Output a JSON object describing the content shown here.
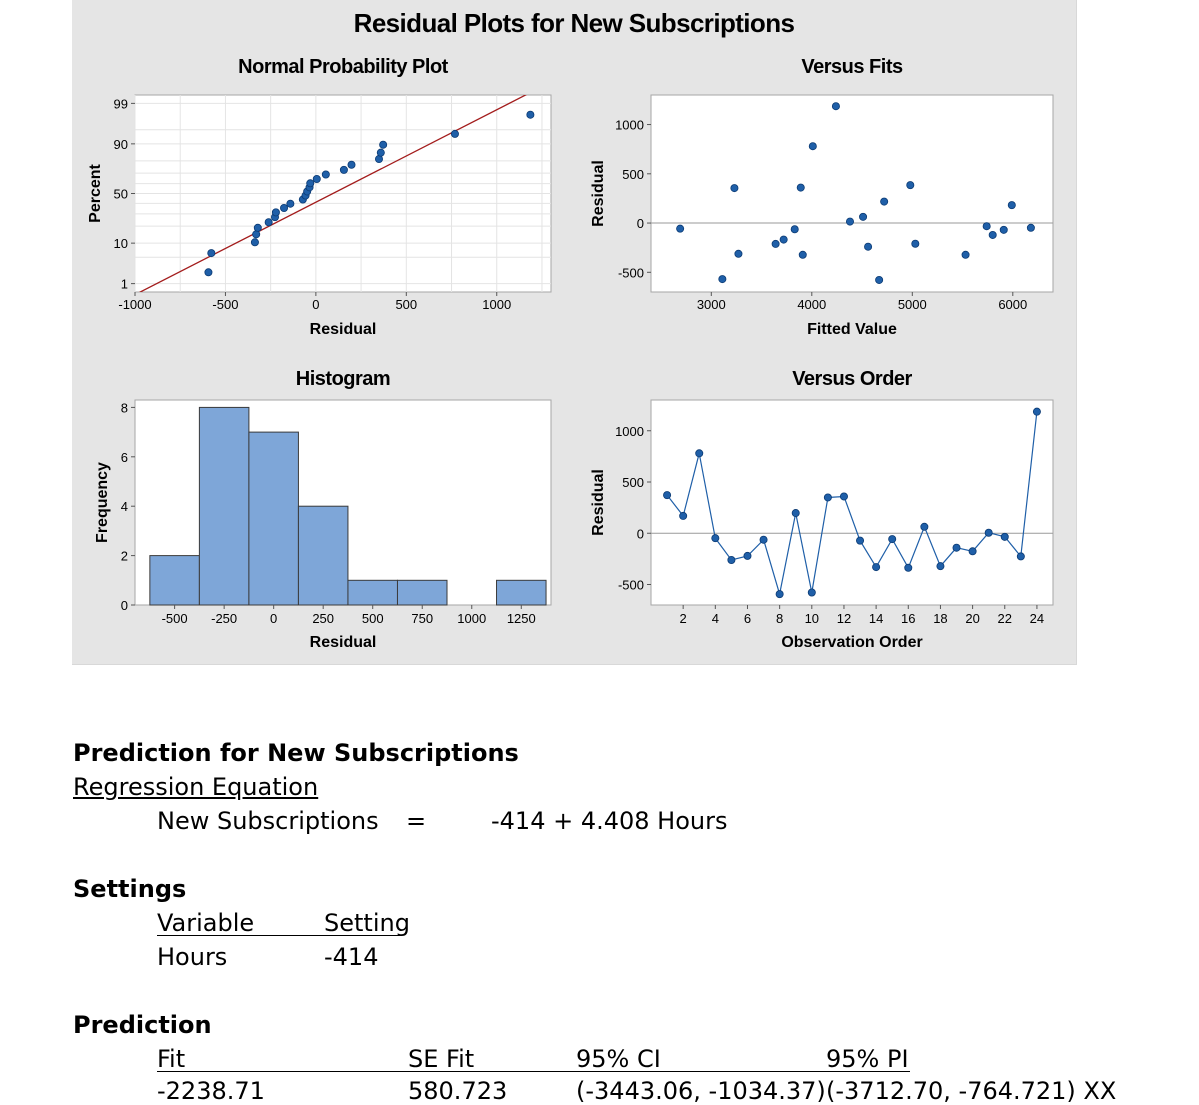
{
  "figure": {
    "main_title": "Residual Plots for New Subscriptions",
    "colors": {
      "panel_bg": "#e5e5e5",
      "plot_bg": "#ffffff",
      "point": "#1f5fa8",
      "bar": "#7ea6d8",
      "fit_line": "#a31c1c",
      "grid": "#e4e4e4"
    }
  },
  "chart_data": [
    {
      "type": "scatter",
      "title": "Normal Probability Plot",
      "xlabel": "Residual",
      "ylabel": "Percent",
      "xlim": [
        -1000,
        1300
      ],
      "xticks": [
        "-1000",
        "-500",
        "0",
        "500",
        "1000"
      ],
      "yticks": [
        "1",
        "10",
        "50",
        "90",
        "99"
      ],
      "y_scale": "normal probability",
      "grid": true,
      "fit_line": {
        "x": [
          -1000,
          1300
        ],
        "y_percent": [
          0.45,
          99.8
        ]
      },
      "points": [
        {
          "x": -594,
          "y": 2.1
        },
        {
          "x": -578,
          "y": 6.2
        },
        {
          "x": -337,
          "y": 10.4
        },
        {
          "x": -330,
          "y": 14.6
        },
        {
          "x": -321,
          "y": 18.8
        },
        {
          "x": -261,
          "y": 22.9
        },
        {
          "x": -226,
          "y": 27.1
        },
        {
          "x": -221,
          "y": 31.3
        },
        {
          "x": -176,
          "y": 35.4
        },
        {
          "x": -141,
          "y": 39.6
        },
        {
          "x": -72,
          "y": 43.8
        },
        {
          "x": -57,
          "y": 47.9
        },
        {
          "x": -48,
          "y": 52.1
        },
        {
          "x": -35,
          "y": 56.3
        },
        {
          "x": -31,
          "y": 60.4
        },
        {
          "x": 5,
          "y": 64.6
        },
        {
          "x": 55,
          "y": 68.8
        },
        {
          "x": 155,
          "y": 72.9
        },
        {
          "x": 197,
          "y": 77.1
        },
        {
          "x": 349,
          "y": 81.3
        },
        {
          "x": 359,
          "y": 85.4
        },
        {
          "x": 372,
          "y": 89.6
        },
        {
          "x": 769,
          "y": 93.8
        },
        {
          "x": 1186,
          "y": 97.9
        }
      ]
    },
    {
      "type": "scatter",
      "title": "Versus Fits",
      "xlabel": "Fitted Value",
      "ylabel": "Residual",
      "xlim": [
        2400,
        6400
      ],
      "ylim": [
        -700,
        1300
      ],
      "xticks": [
        "3000",
        "4000",
        "5000",
        "6000"
      ],
      "yticks": [
        "-500",
        "0",
        "500",
        "1000"
      ],
      "reference_line": 0,
      "points": [
        {
          "x": 2690,
          "y": -57
        },
        {
          "x": 3110,
          "y": -569
        },
        {
          "x": 3230,
          "y": 355
        },
        {
          "x": 3270,
          "y": -312
        },
        {
          "x": 3640,
          "y": -212
        },
        {
          "x": 3720,
          "y": -168
        },
        {
          "x": 3830,
          "y": -63
        },
        {
          "x": 3890,
          "y": 360
        },
        {
          "x": 3910,
          "y": -322
        },
        {
          "x": 4010,
          "y": 780
        },
        {
          "x": 4240,
          "y": 1186
        },
        {
          "x": 4380,
          "y": 15
        },
        {
          "x": 4510,
          "y": 63
        },
        {
          "x": 4560,
          "y": -240
        },
        {
          "x": 4670,
          "y": -578
        },
        {
          "x": 4720,
          "y": 218
        },
        {
          "x": 4980,
          "y": 385
        },
        {
          "x": 5030,
          "y": -210
        },
        {
          "x": 5530,
          "y": -322
        },
        {
          "x": 5740,
          "y": -32
        },
        {
          "x": 5800,
          "y": -121
        },
        {
          "x": 5910,
          "y": -69
        },
        {
          "x": 5990,
          "y": 182
        },
        {
          "x": 6180,
          "y": -48
        }
      ]
    },
    {
      "type": "bar",
      "title": "Histogram",
      "xlabel": "Residual",
      "ylabel": "Frequency",
      "xlim": [
        -700,
        1400
      ],
      "ylim": [
        0,
        8.3
      ],
      "xticks": [
        "-500",
        "-250",
        "0",
        "250",
        "500",
        "750",
        "1000",
        "1250"
      ],
      "yticks": [
        "0",
        "2",
        "4",
        "6",
        "8"
      ],
      "bin_edges": [
        -625,
        -375,
        -125,
        125,
        375,
        625,
        875,
        1125,
        1375
      ],
      "values": [
        2,
        8,
        7,
        4,
        1,
        1,
        0,
        1
      ]
    },
    {
      "type": "line",
      "title": "Versus Order",
      "xlabel": "Observation Order",
      "ylabel": "Residual",
      "xlim": [
        0,
        25
      ],
      "ylim": [
        -700,
        1300
      ],
      "xticks": [
        "2",
        "4",
        "6",
        "8",
        "10",
        "12",
        "14",
        "16",
        "18",
        "20",
        "22",
        "24"
      ],
      "yticks": [
        "-500",
        "0",
        "500",
        "1000"
      ],
      "reference_line": 0,
      "x": [
        1,
        2,
        3,
        4,
        5,
        6,
        7,
        8,
        9,
        10,
        11,
        12,
        13,
        14,
        15,
        16,
        17,
        18,
        19,
        20,
        21,
        22,
        23,
        24
      ],
      "y": [
        372,
        169,
        780,
        -48,
        -261,
        -221,
        -63,
        -594,
        197,
        -578,
        349,
        359,
        -72,
        -330,
        -57,
        -337,
        63,
        -321,
        -141,
        -176,
        5,
        -35,
        -226,
        1186
      ]
    }
  ],
  "document": {
    "prediction_heading": "Prediction for New Subscriptions",
    "regression_equation_label": "Regression Equation",
    "equation": {
      "lhs": "New Subscriptions",
      "equals": "=",
      "rhs": "-414 + 4.408 Hours"
    },
    "settings_heading": "Settings",
    "settings_table": {
      "headers": [
        "Variable",
        "Setting"
      ],
      "rows": [
        [
          "Hours",
          "-414"
        ]
      ]
    },
    "prediction_section_heading": "Prediction",
    "prediction_table": {
      "headers": [
        "Fit",
        "SE Fit",
        "95% CI",
        "95% PI"
      ],
      "rows": [
        [
          "-2238.71",
          "580.723",
          "(-3443.06, -1034.37)",
          "(-3712.70, -764.721) XX"
        ]
      ]
    }
  }
}
